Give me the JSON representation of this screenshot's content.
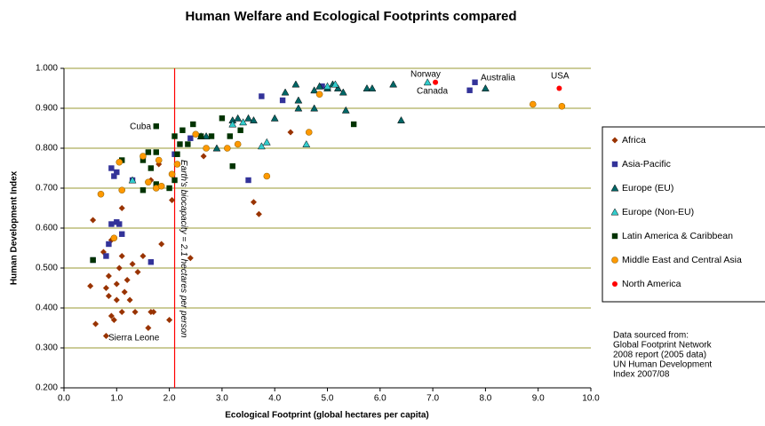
{
  "chart_data": {
    "type": "scatter",
    "title": "Human Welfare and Ecological Footprints compared",
    "x_label": "Ecological Footprint (global hectares per capita)",
    "y_label": "Human Development Index",
    "xlim": [
      0,
      10
    ],
    "ylim": [
      0.2,
      1.0
    ],
    "xticks": [
      {
        "value": 0,
        "label": "0.0"
      },
      {
        "value": 1,
        "label": "1.0"
      },
      {
        "value": 2,
        "label": "2.0"
      },
      {
        "value": 3,
        "label": "3.0"
      },
      {
        "value": 4,
        "label": "4.0"
      },
      {
        "value": 5,
        "label": "5.0"
      },
      {
        "value": 6,
        "label": "6.0"
      },
      {
        "value": 7,
        "label": "7.0"
      },
      {
        "value": 8,
        "label": "8.0"
      },
      {
        "value": 9,
        "label": "9.0"
      },
      {
        "value": 10,
        "label": "10.0"
      }
    ],
    "yticks": [
      {
        "value": 0.2,
        "label": "0.200"
      },
      {
        "value": 0.3,
        "label": "0.300"
      },
      {
        "value": 0.4,
        "label": "0.400"
      },
      {
        "value": 0.5,
        "label": "0.500"
      },
      {
        "value": 0.6,
        "label": "0.600"
      },
      {
        "value": 0.7,
        "label": "0.700"
      },
      {
        "value": 0.8,
        "label": "0.800"
      },
      {
        "value": 0.9,
        "label": "0.900"
      },
      {
        "value": 1.0,
        "label": "1.000"
      }
    ],
    "grid": true,
    "grid_color": "#999933",
    "legend": "right",
    "biocapacity": {
      "x": 2.1,
      "label": "Earth's biocapacity = 2.1 hectares per person",
      "color": "#ff0000"
    },
    "annotations": [
      "Cuba",
      "Norway",
      "Canada",
      "Australia",
      "USA",
      "Sierra Leone"
    ],
    "note": [
      "Data sourced from:",
      "Global Footprint Network",
      "2008 report (2005 data)",
      "UN Human Development",
      "Index 2007/08"
    ],
    "series": [
      {
        "name": "Africa",
        "color": "#993300",
        "marker": "diamond",
        "x": [
          0.5,
          0.55,
          0.6,
          0.75,
          0.8,
          0.8,
          0.85,
          0.85,
          0.9,
          0.95,
          0.9,
          1.0,
          1.05,
          1.1,
          1.1,
          1.15,
          1.2,
          1.25,
          1.3,
          1.35,
          1.4,
          1.5,
          1.6,
          1.65,
          1.7,
          1.85,
          2.0,
          2.05,
          2.4,
          2.65,
          3.6,
          3.7,
          4.3,
          1.65,
          1.8,
          1.0,
          1.1
        ],
        "values": [
          0.455,
          0.62,
          0.36,
          0.54,
          0.45,
          0.33,
          0.43,
          0.48,
          0.38,
          0.37,
          0.57,
          0.46,
          0.5,
          0.53,
          0.65,
          0.44,
          0.47,
          0.42,
          0.51,
          0.39,
          0.49,
          0.53,
          0.35,
          0.39,
          0.39,
          0.56,
          0.37,
          0.67,
          0.525,
          0.78,
          0.665,
          0.635,
          0.84,
          0.72,
          0.76,
          0.42,
          0.39
        ]
      },
      {
        "name": "Asia-Pacific",
        "color": "#333399",
        "marker": "square",
        "x": [
          0.55,
          0.8,
          0.85,
          0.9,
          0.9,
          0.95,
          1.0,
          1.0,
          1.05,
          1.1,
          1.65,
          2.1,
          2.4,
          3.5,
          3.75,
          4.15,
          4.9,
          7.7,
          7.8,
          1.3
        ],
        "values": [
          0.52,
          0.53,
          0.56,
          0.61,
          0.75,
          0.73,
          0.74,
          0.615,
          0.61,
          0.585,
          0.515,
          0.785,
          0.825,
          0.72,
          0.93,
          0.92,
          0.955,
          0.945,
          0.965,
          0.72
        ]
      },
      {
        "name": "Europe (EU)",
        "color": "#006666",
        "marker": "triangle",
        "x": [
          4.2,
          4.4,
          4.45,
          4.45,
          4.75,
          4.85,
          5.0,
          5.1,
          5.2,
          5.3,
          5.35,
          5.75,
          5.85,
          6.25,
          6.4,
          8.0,
          4.0,
          3.5,
          3.2,
          3.3,
          3.6,
          4.75,
          2.9,
          2.7
        ],
        "values": [
          0.94,
          0.96,
          0.92,
          0.9,
          0.945,
          0.955,
          0.95,
          0.96,
          0.95,
          0.94,
          0.895,
          0.95,
          0.95,
          0.96,
          0.87,
          0.95,
          0.875,
          0.875,
          0.87,
          0.875,
          0.87,
          0.9,
          0.8,
          0.83
        ]
      },
      {
        "name": "Europe (Non-EU)",
        "color": "#33cccc",
        "marker": "triangle",
        "x": [
          1.3,
          2.6,
          3.2,
          3.4,
          3.75,
          3.85,
          4.6,
          5.0,
          6.9,
          5.15
        ],
        "values": [
          0.72,
          0.83,
          0.86,
          0.865,
          0.805,
          0.815,
          0.81,
          0.955,
          0.965,
          0.96
        ]
      },
      {
        "name": "Latin America & Caribbean",
        "color": "#003300",
        "marker": "square",
        "x": [
          0.55,
          1.1,
          1.5,
          1.5,
          1.6,
          1.65,
          1.75,
          1.75,
          1.75,
          2.0,
          2.1,
          2.1,
          2.2,
          2.25,
          2.35,
          2.45,
          2.6,
          2.8,
          3.0,
          3.15,
          3.2,
          3.35,
          5.5,
          2.15
        ],
        "values": [
          0.52,
          0.77,
          0.695,
          0.77,
          0.79,
          0.75,
          0.855,
          0.71,
          0.79,
          0.7,
          0.83,
          0.72,
          0.81,
          0.845,
          0.81,
          0.86,
          0.83,
          0.83,
          0.875,
          0.83,
          0.755,
          0.845,
          0.86,
          0.785
        ]
      },
      {
        "name": "Middle East and Central Asia",
        "color": "#ff9900",
        "marker": "circle",
        "x": [
          0.7,
          0.95,
          1.05,
          1.1,
          1.5,
          1.6,
          1.75,
          1.8,
          2.05,
          2.15,
          2.5,
          2.7,
          3.1,
          3.3,
          3.85,
          4.65,
          4.85,
          8.9,
          9.45,
          1.85
        ],
        "values": [
          0.685,
          0.575,
          0.765,
          0.695,
          0.78,
          0.715,
          0.7,
          0.77,
          0.735,
          0.76,
          0.835,
          0.8,
          0.8,
          0.81,
          0.73,
          0.84,
          0.935,
          0.91,
          0.905,
          0.705
        ]
      },
      {
        "name": "North America",
        "color": "#ff0000",
        "marker": "dot",
        "x": [
          7.05,
          9.4
        ],
        "values": [
          0.965,
          0.95
        ]
      }
    ]
  }
}
